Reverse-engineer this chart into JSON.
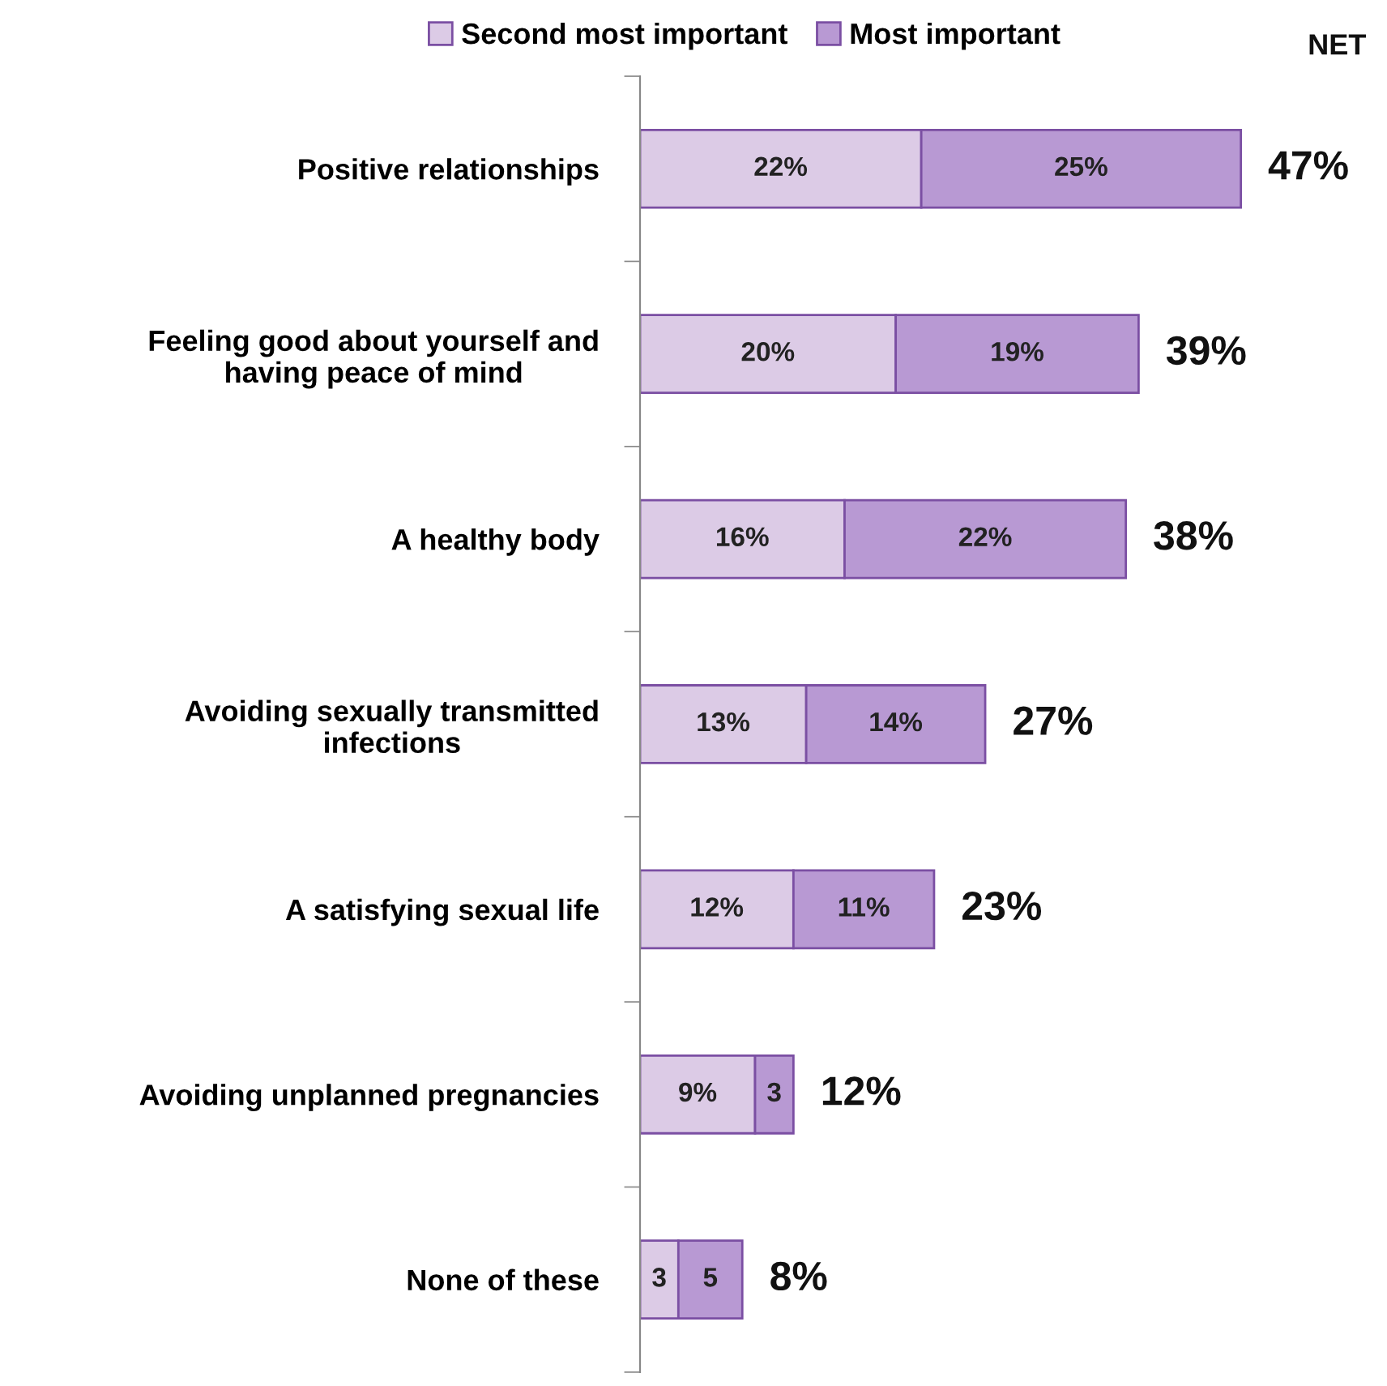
{
  "chart_data": {
    "type": "bar",
    "orientation": "horizontal",
    "stacked": true,
    "legend": "top",
    "categories": [
      "Positive relationships",
      "Feeling good about yourself and\nhaving peace of mind",
      "A healthy body",
      "Avoiding sexually transmitted\ninfections",
      "A satisfying sexual life",
      "Avoiding unplanned pregnancies",
      "None of these"
    ],
    "series": [
      {
        "name": "Second most important",
        "color": "#dccbe6",
        "values": [
          22,
          20,
          16,
          13,
          12,
          9,
          3
        ],
        "value_labels": [
          "22%",
          "20%",
          "16%",
          "13%",
          "12%",
          "9%",
          "3"
        ]
      },
      {
        "name": "Most important",
        "color": "#b899d3",
        "values": [
          25,
          19,
          22,
          14,
          11,
          3,
          5
        ],
        "value_labels": [
          "25%",
          "19%",
          "22%",
          "14%",
          "11%",
          "3",
          "5"
        ]
      }
    ],
    "totals": [
      "47%",
      "39%",
      "38%",
      "27%",
      "23%",
      "12%",
      "8%"
    ],
    "annotations": [
      "NET"
    ]
  }
}
